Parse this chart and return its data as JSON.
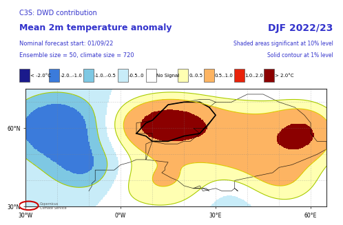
{
  "title_line1": "C3S: DWD contribution",
  "title_line2": "Mean 2m temperature anomaly",
  "subtitle_line1": "Nominal forecast start: 01/09/22",
  "subtitle_line2": "Ensemble size = 50, climate size = 720",
  "right_title": "DJF 2022/23",
  "right_sub1": "Shaded areas significant at 10% level",
  "right_sub2": "Solid contour at 1% level",
  "legend_entries": [
    {
      "label": "< -2.0°C",
      "color": "#1a1a8c"
    },
    {
      "label": "-2.0..-1.0",
      "color": "#3b7bdb"
    },
    {
      "label": "-1.0..-0.5",
      "color": "#7ec8e3"
    },
    {
      "label": "-0.5..0",
      "color": "#c8ecf8"
    },
    {
      "label": "No Signal",
      "color": "#ffffff"
    },
    {
      "label": "0..0.5",
      "color": "#ffffb2"
    },
    {
      "label": "0.5..1.0",
      "color": "#fdb462"
    },
    {
      "label": "1.0..2.0",
      "color": "#e8220a"
    },
    {
      "label": "> 2.0°C",
      "color": "#8b0000"
    }
  ],
  "map_bg": "#f0f0f0",
  "title_color": "#3333cc",
  "right_title_color": "#3333cc",
  "sub_color": "#3333cc",
  "bg_color": "#ffffff",
  "map_xlim": [
    -30,
    65
  ],
  "map_ylim": [
    30,
    75
  ],
  "x_ticks": [
    -30,
    0,
    30,
    60
  ],
  "x_tick_labels": [
    "30°W",
    "0°W",
    "30°E",
    "60°E"
  ],
  "y_ticks": [
    30,
    60
  ],
  "y_tick_labels": [
    "30°N",
    "60°N"
  ]
}
